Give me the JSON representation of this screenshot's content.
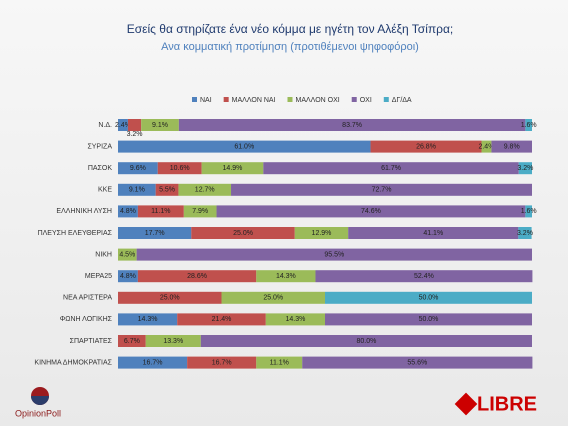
{
  "chart_data": {
    "type": "stacked_bar_horizontal",
    "title": "Εσείς θα στηρίζατε  ένα νέο κόμμα με ηγέτη τον Αλέξη Τσίπρα;",
    "subtitle": "Ανα κομματική προτίμηση (προτιθέμενοι ψηφοφόροι)",
    "categories": [
      "Ν.Δ.",
      "ΣΥΡΙΖΑ",
      "ΠΑΣΟΚ",
      "ΚΚΕ",
      "ΕΛΛΗΝΙΚΗ ΛΥΣΗ",
      "ΠΛΕΥΣΗ ΕΛΕΥΘΕΡΙΑΣ",
      "ΝΙΚΗ",
      "ΜΕΡΑ25",
      "ΝΕΑ ΑΡΙΣΤΕΡΑ",
      "ΦΩΝΗ ΛΟΓΙΚΗΣ",
      "ΣΠΑΡΤΙΑΤΕΣ",
      "ΚΙΝΗΜΑ ΔΗΜΟΚΡΑΤΙΑΣ"
    ],
    "xlim": [
      0,
      100
    ],
    "series": [
      {
        "name": "ΝΑΙ",
        "color": "#4f81bd",
        "values": [
          2.4,
          61.0,
          9.6,
          9.1,
          4.8,
          17.7,
          null,
          4.8,
          null,
          14.3,
          null,
          16.7
        ],
        "value_labels": [
          "2.4%",
          "61.0%",
          "9.6%",
          "9.1%",
          "4.8%",
          "17.7%",
          null,
          "4.8%",
          null,
          "14.3%",
          null,
          "16.7%"
        ]
      },
      {
        "name": "ΜΑΛΛΟΝ ΝΑΙ",
        "color": "#c0504d",
        "values": [
          3.2,
          26.8,
          10.6,
          5.5,
          11.1,
          25.0,
          null,
          28.6,
          25.0,
          21.4,
          6.7,
          16.7
        ],
        "value_labels": [
          "3.2%",
          "26.8%",
          "10.6%",
          "5.5%",
          "11.1%",
          "25.0%",
          null,
          "28.6%",
          "25.0%",
          "21.4%",
          "6.7%",
          "16.7%"
        ]
      },
      {
        "name": "ΜΑΛΛΟΝ ΟΧΙ",
        "color": "#9bbb59",
        "values": [
          9.1,
          2.4,
          14.9,
          12.7,
          7.9,
          12.9,
          4.5,
          14.3,
          25.0,
          14.3,
          13.3,
          11.1
        ],
        "value_labels": [
          "9.1%",
          "2.4%",
          "14.9%",
          "12.7%",
          "7.9%",
          "12.9%",
          "4.5%",
          "14.3%",
          "25.0%",
          "14.3%",
          "13.3%",
          "11.1%"
        ]
      },
      {
        "name": "ΟΧΙ",
        "color": "#8064a2",
        "values": [
          83.7,
          9.8,
          61.7,
          72.7,
          74.6,
          41.1,
          95.5,
          52.4,
          null,
          50.0,
          80.0,
          55.6
        ],
        "value_labels": [
          "83.7%",
          "9.8%",
          "61.7%",
          "72.7%",
          "74.6%",
          "41.1%",
          "95.5%",
          "52.4%",
          null,
          "50.0%",
          "80.0%",
          "55.6%"
        ]
      },
      {
        "name": "ΔΓ/ΔΑ",
        "color": "#4bacc6",
        "values": [
          1.6,
          null,
          3.2,
          null,
          1.6,
          3.2,
          null,
          null,
          50.0,
          null,
          null,
          null
        ],
        "value_labels": [
          "1.6%",
          null,
          "3.2%",
          null,
          "1.6%",
          "3.2%",
          null,
          null,
          "50.0%",
          null,
          null,
          null
        ]
      }
    ],
    "legend": "top"
  },
  "logos": [
    "OpinionPoll",
    "LIBRE"
  ]
}
